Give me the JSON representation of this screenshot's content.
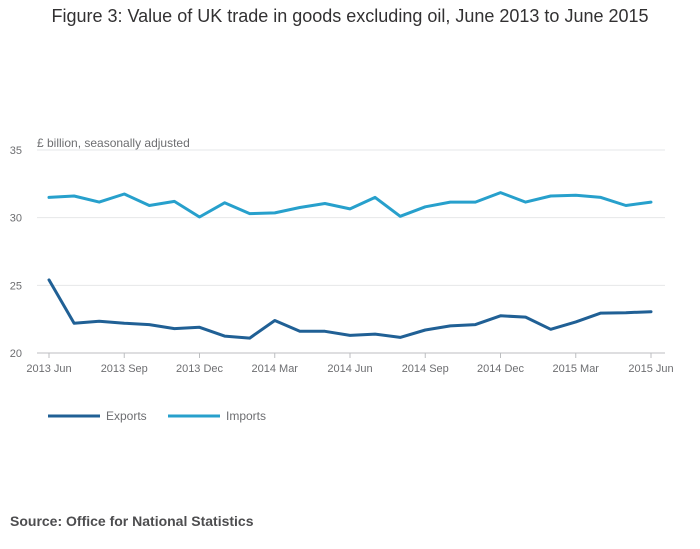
{
  "title": "Figure 3: Value of UK trade in goods excluding oil, June 2013 to June 2015",
  "source": "Source: Office for National Statistics",
  "chart_data": {
    "type": "line",
    "title": "Figure 3: Value of UK trade in goods excluding oil, June 2013 to June 2015",
    "ylabel": "£ billion, seasonally adjusted",
    "xlabel": "",
    "ylim": [
      20,
      35
    ],
    "yticks": [
      20,
      25,
      30,
      35
    ],
    "x": [
      "2013 Jun",
      "2013 Jul",
      "2013 Aug",
      "2013 Sep",
      "2013 Oct",
      "2013 Nov",
      "2013 Dec",
      "2014 Jan",
      "2014 Feb",
      "2014 Mar",
      "2014 Apr",
      "2014 May",
      "2014 Jun",
      "2014 Jul",
      "2014 Aug",
      "2014 Sep",
      "2014 Oct",
      "2014 Nov",
      "2014 Dec",
      "2015 Jan",
      "2015 Feb",
      "2015 Mar",
      "2015 Apr",
      "2015 May",
      "2015 Jun"
    ],
    "xtick_labels": [
      "2013 Jun",
      "2013 Sep",
      "2013 Dec",
      "2014 Mar",
      "2014 Jun",
      "2014 Sep",
      "2014 Dec",
      "2015 Mar",
      "2015 Jun"
    ],
    "grid": true,
    "legend_position": "bottom-left",
    "series": [
      {
        "name": "Exports",
        "color": "#206095",
        "values": [
          25.4,
          22.2,
          22.35,
          22.2,
          22.1,
          21.8,
          21.9,
          21.25,
          21.1,
          22.4,
          21.6,
          21.6,
          21.3,
          21.4,
          21.15,
          21.7,
          22.0,
          22.1,
          22.75,
          22.65,
          21.75,
          22.3,
          22.95,
          22.98,
          23.05
        ]
      },
      {
        "name": "Imports",
        "color": "#27a0cc",
        "values": [
          31.5,
          31.6,
          31.15,
          31.75,
          30.9,
          31.2,
          30.05,
          31.1,
          30.3,
          30.35,
          30.75,
          31.05,
          30.65,
          31.5,
          30.1,
          30.8,
          31.15,
          31.15,
          31.85,
          31.15,
          31.6,
          31.65,
          31.5,
          30.9,
          31.15
        ]
      }
    ]
  }
}
